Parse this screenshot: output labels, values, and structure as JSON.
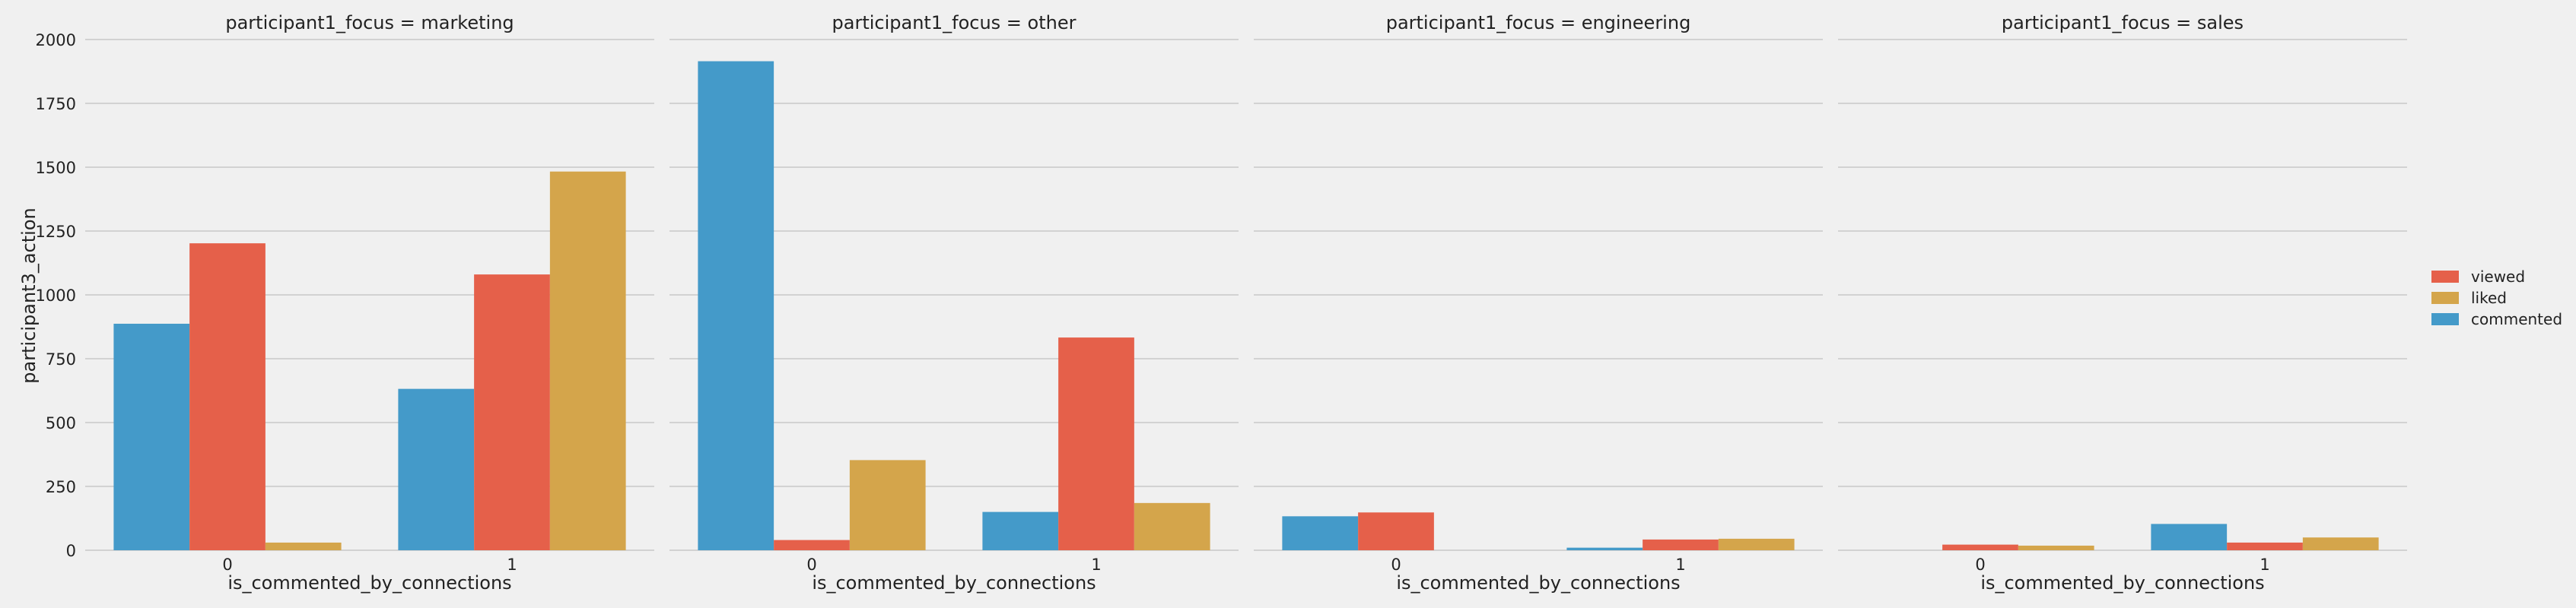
{
  "figure": {
    "ylabel": "participant3_action",
    "xlabel": "is_commented_by_connections",
    "yticks": [
      "0",
      "250",
      "500",
      "750",
      "1000",
      "1250",
      "1500",
      "1750",
      "2000"
    ]
  },
  "legend": {
    "placement": "right",
    "entries": [
      {
        "label": "viewed",
        "color": "#e5604a"
      },
      {
        "label": "liked",
        "color": "#d4a54b"
      },
      {
        "label": "commented",
        "color": "#449ac9"
      }
    ]
  },
  "chart_data": {
    "type": "bar",
    "ylim": [
      0,
      2000
    ],
    "grid": true,
    "categories": [
      "0",
      "1"
    ],
    "series_order": [
      "commented",
      "viewed",
      "liked"
    ],
    "series_colors": {
      "commented": "#449ac9",
      "viewed": "#e5604a",
      "liked": "#d4a54b"
    },
    "facets": [
      {
        "title": "participant1_focus = marketing",
        "series": [
          {
            "name": "commented",
            "values": [
              887,
              632
            ]
          },
          {
            "name": "viewed",
            "values": [
              1202,
              1080
            ]
          },
          {
            "name": "liked",
            "values": [
              30,
              1483
            ]
          }
        ]
      },
      {
        "title": "participant1_focus = other",
        "series": [
          {
            "name": "commented",
            "values": [
              1915,
              150
            ]
          },
          {
            "name": "viewed",
            "values": [
              40,
              833
            ]
          },
          {
            "name": "liked",
            "values": [
              353,
              185
            ]
          }
        ]
      },
      {
        "title": "participant1_focus = engineering",
        "series": [
          {
            "name": "commented",
            "values": [
              133,
              10
            ]
          },
          {
            "name": "viewed",
            "values": [
              148,
              42
            ]
          },
          {
            "name": "liked",
            "values": [
              0,
              45
            ]
          }
        ]
      },
      {
        "title": "participant1_focus = sales",
        "series": [
          {
            "name": "commented",
            "values": [
              0,
              103
            ]
          },
          {
            "name": "viewed",
            "values": [
              22,
              30
            ]
          },
          {
            "name": "liked",
            "values": [
              18,
              50
            ]
          }
        ]
      }
    ]
  }
}
